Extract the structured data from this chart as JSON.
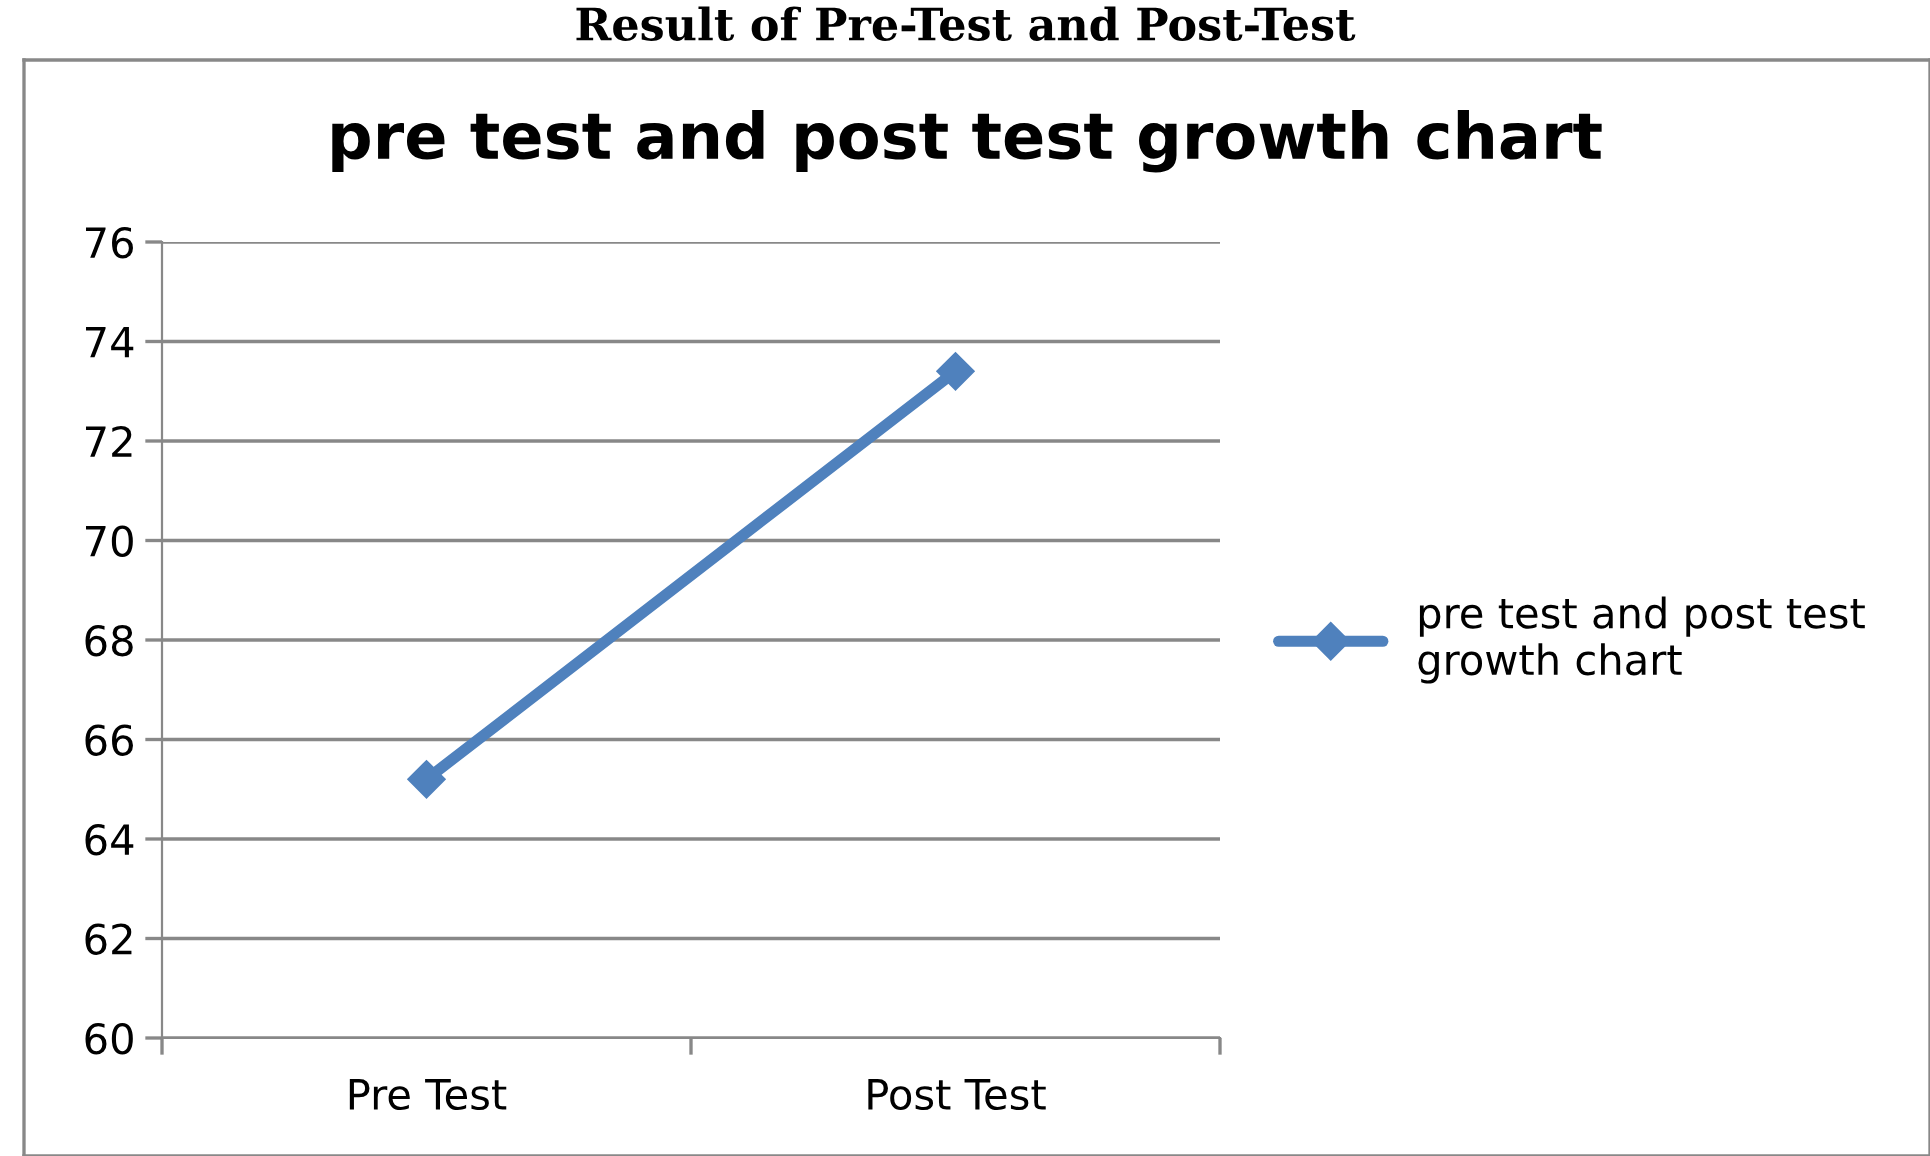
{
  "chart_data": {
    "type": "line",
    "title": "pre test and post test growth chart",
    "annotations": [
      "Result of Pre-Test and Post-Test"
    ],
    "categories": [
      "Pre Test",
      "Post Test"
    ],
    "series": [
      {
        "name": "pre test and post test growth chart",
        "color": "#4f81bd",
        "values": [
          65.2,
          73.4
        ]
      }
    ],
    "ylim": [
      60,
      76
    ],
    "yticks": [
      60,
      62,
      64,
      66,
      68,
      70,
      72,
      74,
      76
    ],
    "grid": "y",
    "legend": "right",
    "marker": "diamond",
    "line_style": "solid"
  }
}
